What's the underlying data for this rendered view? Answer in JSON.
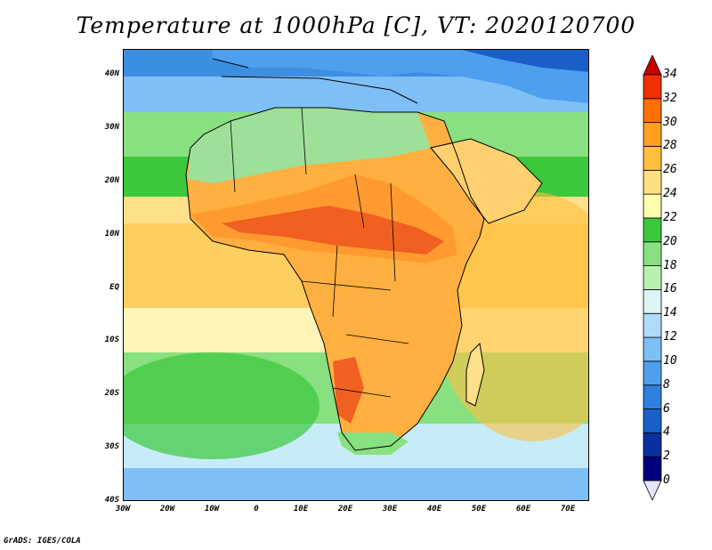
{
  "title": "Temperature at 1000hPa [C], VT: 2020120700",
  "credit": "GrADS: IGES/COLA",
  "lat_labels": [
    "40N",
    "30N",
    "20N",
    "10N",
    "EQ",
    "10S",
    "20S",
    "30S",
    "40S"
  ],
  "lon_labels": [
    "30W",
    "20W",
    "10W",
    "0",
    "10E",
    "20E",
    "30E",
    "40E",
    "50E",
    "60E",
    "70E"
  ],
  "colorbar": {
    "values": [
      "0",
      "2",
      "4",
      "6",
      "8",
      "10",
      "12",
      "14",
      "16",
      "18",
      "20",
      "22",
      "24",
      "26",
      "28",
      "30",
      "32",
      "34"
    ],
    "colors": [
      "#e5e5ff",
      "#00007f",
      "#0a2fa0",
      "#1a5fc8",
      "#2e7fe0",
      "#4f9fef",
      "#7fbff7",
      "#b0dcfa",
      "#dcf4f4",
      "#b8f0b0",
      "#88e080",
      "#3cc83c",
      "#ffffb0",
      "#ffe080",
      "#ffc040",
      "#ffa020",
      "#ff7000",
      "#f03000",
      "#c80000"
    ]
  },
  "map": {
    "ocean_colors": {
      "far_north": "#3c8fe0",
      "mid_north": "#7fd17a",
      "tropics": "#ffe08a",
      "south_warm": "#fff4b8",
      "south_green": "#7fd17a",
      "south_cool": "#c6ecf7",
      "far_south": "#7fbff7"
    },
    "land_colors": {
      "europe": "#4f9fef",
      "sahara_north": "#9ee09a",
      "sahel": "#ff9a30",
      "hot_core": "#f06020",
      "central": "#ffb040",
      "southern": "#ffb040",
      "kalahari_hot": "#f06020"
    }
  }
}
